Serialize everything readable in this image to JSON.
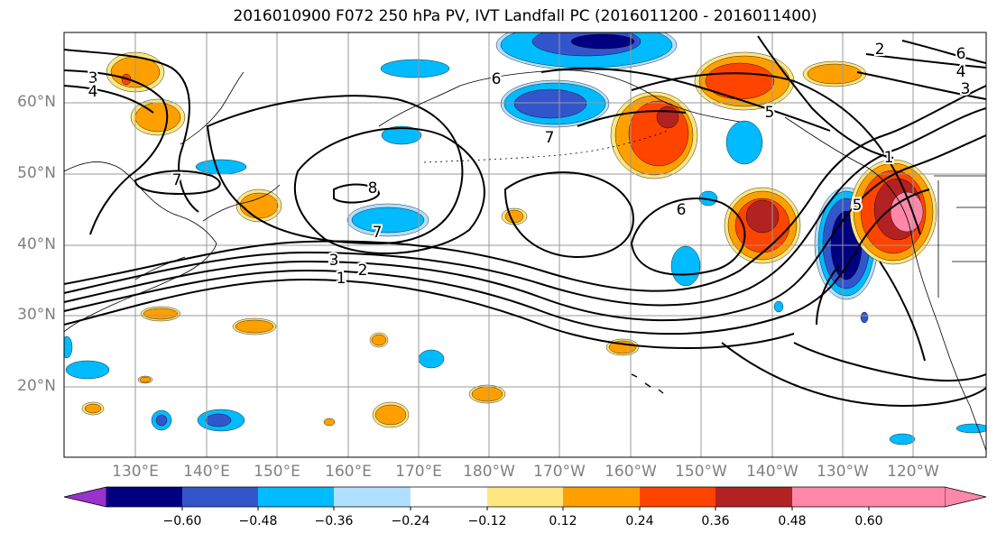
{
  "title": "2016010900 F072 250 hPa PV, IVT Landfall PC (2016011200 - 2016011400)",
  "lat_labels": [
    "60°N",
    "50°N",
    "40°N",
    "30°N",
    "20°N"
  ],
  "lon_labels": [
    "130°E",
    "140°E",
    "150°E",
    "160°E",
    "170°E",
    "180°W",
    "170°W",
    "160°W",
    "150°W",
    "140°W",
    "130°W",
    "120°W"
  ],
  "contour_labels": [
    "3",
    "4",
    "6",
    "7",
    "7",
    "8",
    "7",
    "3",
    "2",
    "1",
    "6",
    "5",
    "1",
    "5",
    "2",
    "6",
    "4",
    "3"
  ],
  "colorbar": {
    "ticks": [
      "−0.60",
      "−0.48",
      "−0.36",
      "−0.24",
      "−0.12",
      "0.12",
      "0.24",
      "0.36",
      "0.48",
      "0.60"
    ],
    "colors": [
      "#9933cc",
      "#000080",
      "#3355cc",
      "#00bbff",
      "#b0e0ff",
      "#ffffff",
      "#ffe680",
      "#ffa000",
      "#ff4400",
      "#b22222",
      "#ff88aa",
      "#ff88aa"
    ]
  },
  "colors": {
    "orange": "#ffa000",
    "red": "#ff4400",
    "darkred": "#b22222",
    "pink": "#ff88aa",
    "yellow": "#ffe680",
    "cyan": "#00bbff",
    "lightblue": "#b0e0ff",
    "blue": "#3355cc",
    "navy": "#000080"
  }
}
